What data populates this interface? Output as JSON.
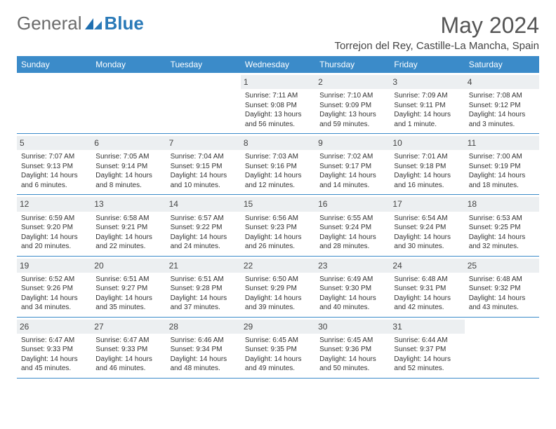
{
  "logo": {
    "general": "General",
    "blue": "Blue"
  },
  "title": "May 2024",
  "location": "Torrejon del Rey, Castille-La Mancha, Spain",
  "weekday_labels": [
    "Sunday",
    "Monday",
    "Tuesday",
    "Wednesday",
    "Thursday",
    "Friday",
    "Saturday"
  ],
  "style": {
    "header_bg": "#3b8bc9",
    "header_fg": "#ffffff",
    "daynum_bg": "#eceff1",
    "border_color": "#3b8bc9",
    "logo_blue": "#2a7ab8",
    "page_bg": "#ffffff",
    "text_color": "#333333"
  },
  "first_weekday_index": 3,
  "days": [
    {
      "n": "1",
      "sunrise": "7:11 AM",
      "sunset": "9:08 PM",
      "daylight": "13 hours and 56 minutes."
    },
    {
      "n": "2",
      "sunrise": "7:10 AM",
      "sunset": "9:09 PM",
      "daylight": "13 hours and 59 minutes."
    },
    {
      "n": "3",
      "sunrise": "7:09 AM",
      "sunset": "9:11 PM",
      "daylight": "14 hours and 1 minute."
    },
    {
      "n": "4",
      "sunrise": "7:08 AM",
      "sunset": "9:12 PM",
      "daylight": "14 hours and 3 minutes."
    },
    {
      "n": "5",
      "sunrise": "7:07 AM",
      "sunset": "9:13 PM",
      "daylight": "14 hours and 6 minutes."
    },
    {
      "n": "6",
      "sunrise": "7:05 AM",
      "sunset": "9:14 PM",
      "daylight": "14 hours and 8 minutes."
    },
    {
      "n": "7",
      "sunrise": "7:04 AM",
      "sunset": "9:15 PM",
      "daylight": "14 hours and 10 minutes."
    },
    {
      "n": "8",
      "sunrise": "7:03 AM",
      "sunset": "9:16 PM",
      "daylight": "14 hours and 12 minutes."
    },
    {
      "n": "9",
      "sunrise": "7:02 AM",
      "sunset": "9:17 PM",
      "daylight": "14 hours and 14 minutes."
    },
    {
      "n": "10",
      "sunrise": "7:01 AM",
      "sunset": "9:18 PM",
      "daylight": "14 hours and 16 minutes."
    },
    {
      "n": "11",
      "sunrise": "7:00 AM",
      "sunset": "9:19 PM",
      "daylight": "14 hours and 18 minutes."
    },
    {
      "n": "12",
      "sunrise": "6:59 AM",
      "sunset": "9:20 PM",
      "daylight": "14 hours and 20 minutes."
    },
    {
      "n": "13",
      "sunrise": "6:58 AM",
      "sunset": "9:21 PM",
      "daylight": "14 hours and 22 minutes."
    },
    {
      "n": "14",
      "sunrise": "6:57 AM",
      "sunset": "9:22 PM",
      "daylight": "14 hours and 24 minutes."
    },
    {
      "n": "15",
      "sunrise": "6:56 AM",
      "sunset": "9:23 PM",
      "daylight": "14 hours and 26 minutes."
    },
    {
      "n": "16",
      "sunrise": "6:55 AM",
      "sunset": "9:24 PM",
      "daylight": "14 hours and 28 minutes."
    },
    {
      "n": "17",
      "sunrise": "6:54 AM",
      "sunset": "9:24 PM",
      "daylight": "14 hours and 30 minutes."
    },
    {
      "n": "18",
      "sunrise": "6:53 AM",
      "sunset": "9:25 PM",
      "daylight": "14 hours and 32 minutes."
    },
    {
      "n": "19",
      "sunrise": "6:52 AM",
      "sunset": "9:26 PM",
      "daylight": "14 hours and 34 minutes."
    },
    {
      "n": "20",
      "sunrise": "6:51 AM",
      "sunset": "9:27 PM",
      "daylight": "14 hours and 35 minutes."
    },
    {
      "n": "21",
      "sunrise": "6:51 AM",
      "sunset": "9:28 PM",
      "daylight": "14 hours and 37 minutes."
    },
    {
      "n": "22",
      "sunrise": "6:50 AM",
      "sunset": "9:29 PM",
      "daylight": "14 hours and 39 minutes."
    },
    {
      "n": "23",
      "sunrise": "6:49 AM",
      "sunset": "9:30 PM",
      "daylight": "14 hours and 40 minutes."
    },
    {
      "n": "24",
      "sunrise": "6:48 AM",
      "sunset": "9:31 PM",
      "daylight": "14 hours and 42 minutes."
    },
    {
      "n": "25",
      "sunrise": "6:48 AM",
      "sunset": "9:32 PM",
      "daylight": "14 hours and 43 minutes."
    },
    {
      "n": "26",
      "sunrise": "6:47 AM",
      "sunset": "9:33 PM",
      "daylight": "14 hours and 45 minutes."
    },
    {
      "n": "27",
      "sunrise": "6:47 AM",
      "sunset": "9:33 PM",
      "daylight": "14 hours and 46 minutes."
    },
    {
      "n": "28",
      "sunrise": "6:46 AM",
      "sunset": "9:34 PM",
      "daylight": "14 hours and 48 minutes."
    },
    {
      "n": "29",
      "sunrise": "6:45 AM",
      "sunset": "9:35 PM",
      "daylight": "14 hours and 49 minutes."
    },
    {
      "n": "30",
      "sunrise": "6:45 AM",
      "sunset": "9:36 PM",
      "daylight": "14 hours and 50 minutes."
    },
    {
      "n": "31",
      "sunrise": "6:44 AM",
      "sunset": "9:37 PM",
      "daylight": "14 hours and 52 minutes."
    }
  ]
}
